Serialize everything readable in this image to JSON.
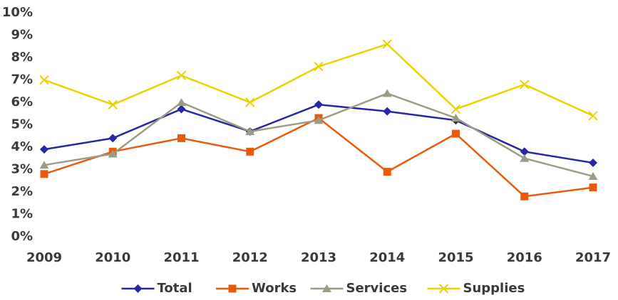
{
  "chart_data": {
    "type": "line",
    "x": [
      "2009",
      "2010",
      "2011",
      "2012",
      "2013",
      "2014",
      "2015",
      "2016",
      "2017"
    ],
    "series": [
      {
        "name": "Total",
        "color": "#2626a6",
        "marker": "diamond",
        "values": [
          3.9,
          4.4,
          5.7,
          4.7,
          5.9,
          5.6,
          5.2,
          3.8,
          3.3
        ]
      },
      {
        "name": "Works",
        "color": "#ea5a0c",
        "marker": "square",
        "values": [
          2.8,
          3.8,
          4.4,
          3.8,
          5.3,
          2.9,
          4.6,
          1.8,
          2.2
        ]
      },
      {
        "name": "Services",
        "color": "#9c9c84",
        "marker": "triangle",
        "values": [
          3.2,
          3.7,
          6.0,
          4.7,
          5.2,
          6.4,
          5.3,
          3.5,
          2.7
        ]
      },
      {
        "name": "Supplies",
        "color": "#e8d400",
        "marker": "x",
        "values": [
          7.0,
          5.9,
          7.2,
          6.0,
          7.6,
          8.6,
          5.7,
          6.8,
          5.4
        ]
      }
    ],
    "ylim": [
      0,
      10
    ],
    "yticks": [
      {
        "value": 0,
        "label": "0%"
      },
      {
        "value": 1,
        "label": "1%"
      },
      {
        "value": 2,
        "label": "2%"
      },
      {
        "value": 3,
        "label": "3%"
      },
      {
        "value": 4,
        "label": "4%"
      },
      {
        "value": 5,
        "label": "5%"
      },
      {
        "value": 6,
        "label": "6%"
      },
      {
        "value": 7,
        "label": "7%"
      },
      {
        "value": 8,
        "label": "8%"
      },
      {
        "value": 9,
        "label": "9%"
      },
      {
        "value": 10,
        "label": "10%"
      }
    ],
    "legend": "bottom"
  }
}
